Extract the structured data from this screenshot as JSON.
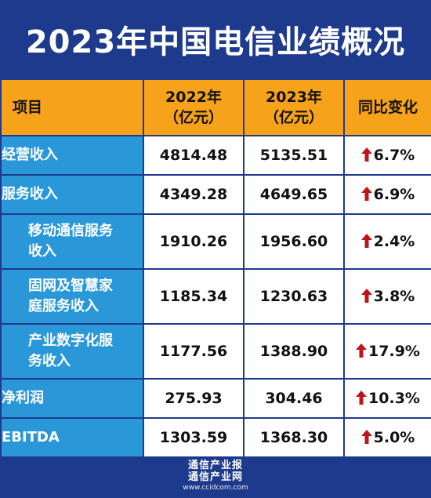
{
  "title": "2023年中国电信业绩概况",
  "header": {
    "col_item": "项目",
    "col_2022_line1": "2022年",
    "col_2022_line2": "（亿元）",
    "col_2023_line1": "2023年",
    "col_2023_line2": "（亿元）",
    "col_change": "同比变化"
  },
  "rows": [
    {
      "label_line1": "经营收入",
      "label_line2": "",
      "v2022": "4814.48",
      "v2023": "5135.51",
      "change": "6.7%"
    },
    {
      "label_line1": "服务收入",
      "label_line2": "",
      "v2022": "4349.28",
      "v2023": "4649.65",
      "change": "6.9%"
    },
    {
      "label_line1": "移动通信服务",
      "label_line2": "收入",
      "v2022": "1910.26",
      "v2023": "1956.60",
      "change": "2.4%"
    },
    {
      "label_line1": "固网及智慧家",
      "label_line2": "庭服务收入",
      "v2022": "1185.34",
      "v2023": "1230.63",
      "change": "3.8%"
    },
    {
      "label_line1": "产业数字化服",
      "label_line2": "务收入",
      "v2022": "1177.56",
      "v2023": "1388.90",
      "change": "17.9%"
    },
    {
      "label_line1": "净利润",
      "label_line2": "",
      "v2022": "275.93",
      "v2023": "304.46",
      "change": "10.3%"
    },
    {
      "label_line1": "EBITDA",
      "label_line2": "",
      "v2022": "1303.59",
      "v2023": "1368.30",
      "change": "5.0%"
    }
  ],
  "icons": {
    "change_arrow": "up-arrow-icon",
    "arrow_color": "#c0141b"
  },
  "footer": {
    "brand_line1": "通信产业报",
    "brand_line2": "通信产业网",
    "url": "www.ccidcom.com"
  },
  "colors": {
    "background": "#1e3a8c",
    "header": "#f7a21b",
    "label": "#2997d8"
  }
}
